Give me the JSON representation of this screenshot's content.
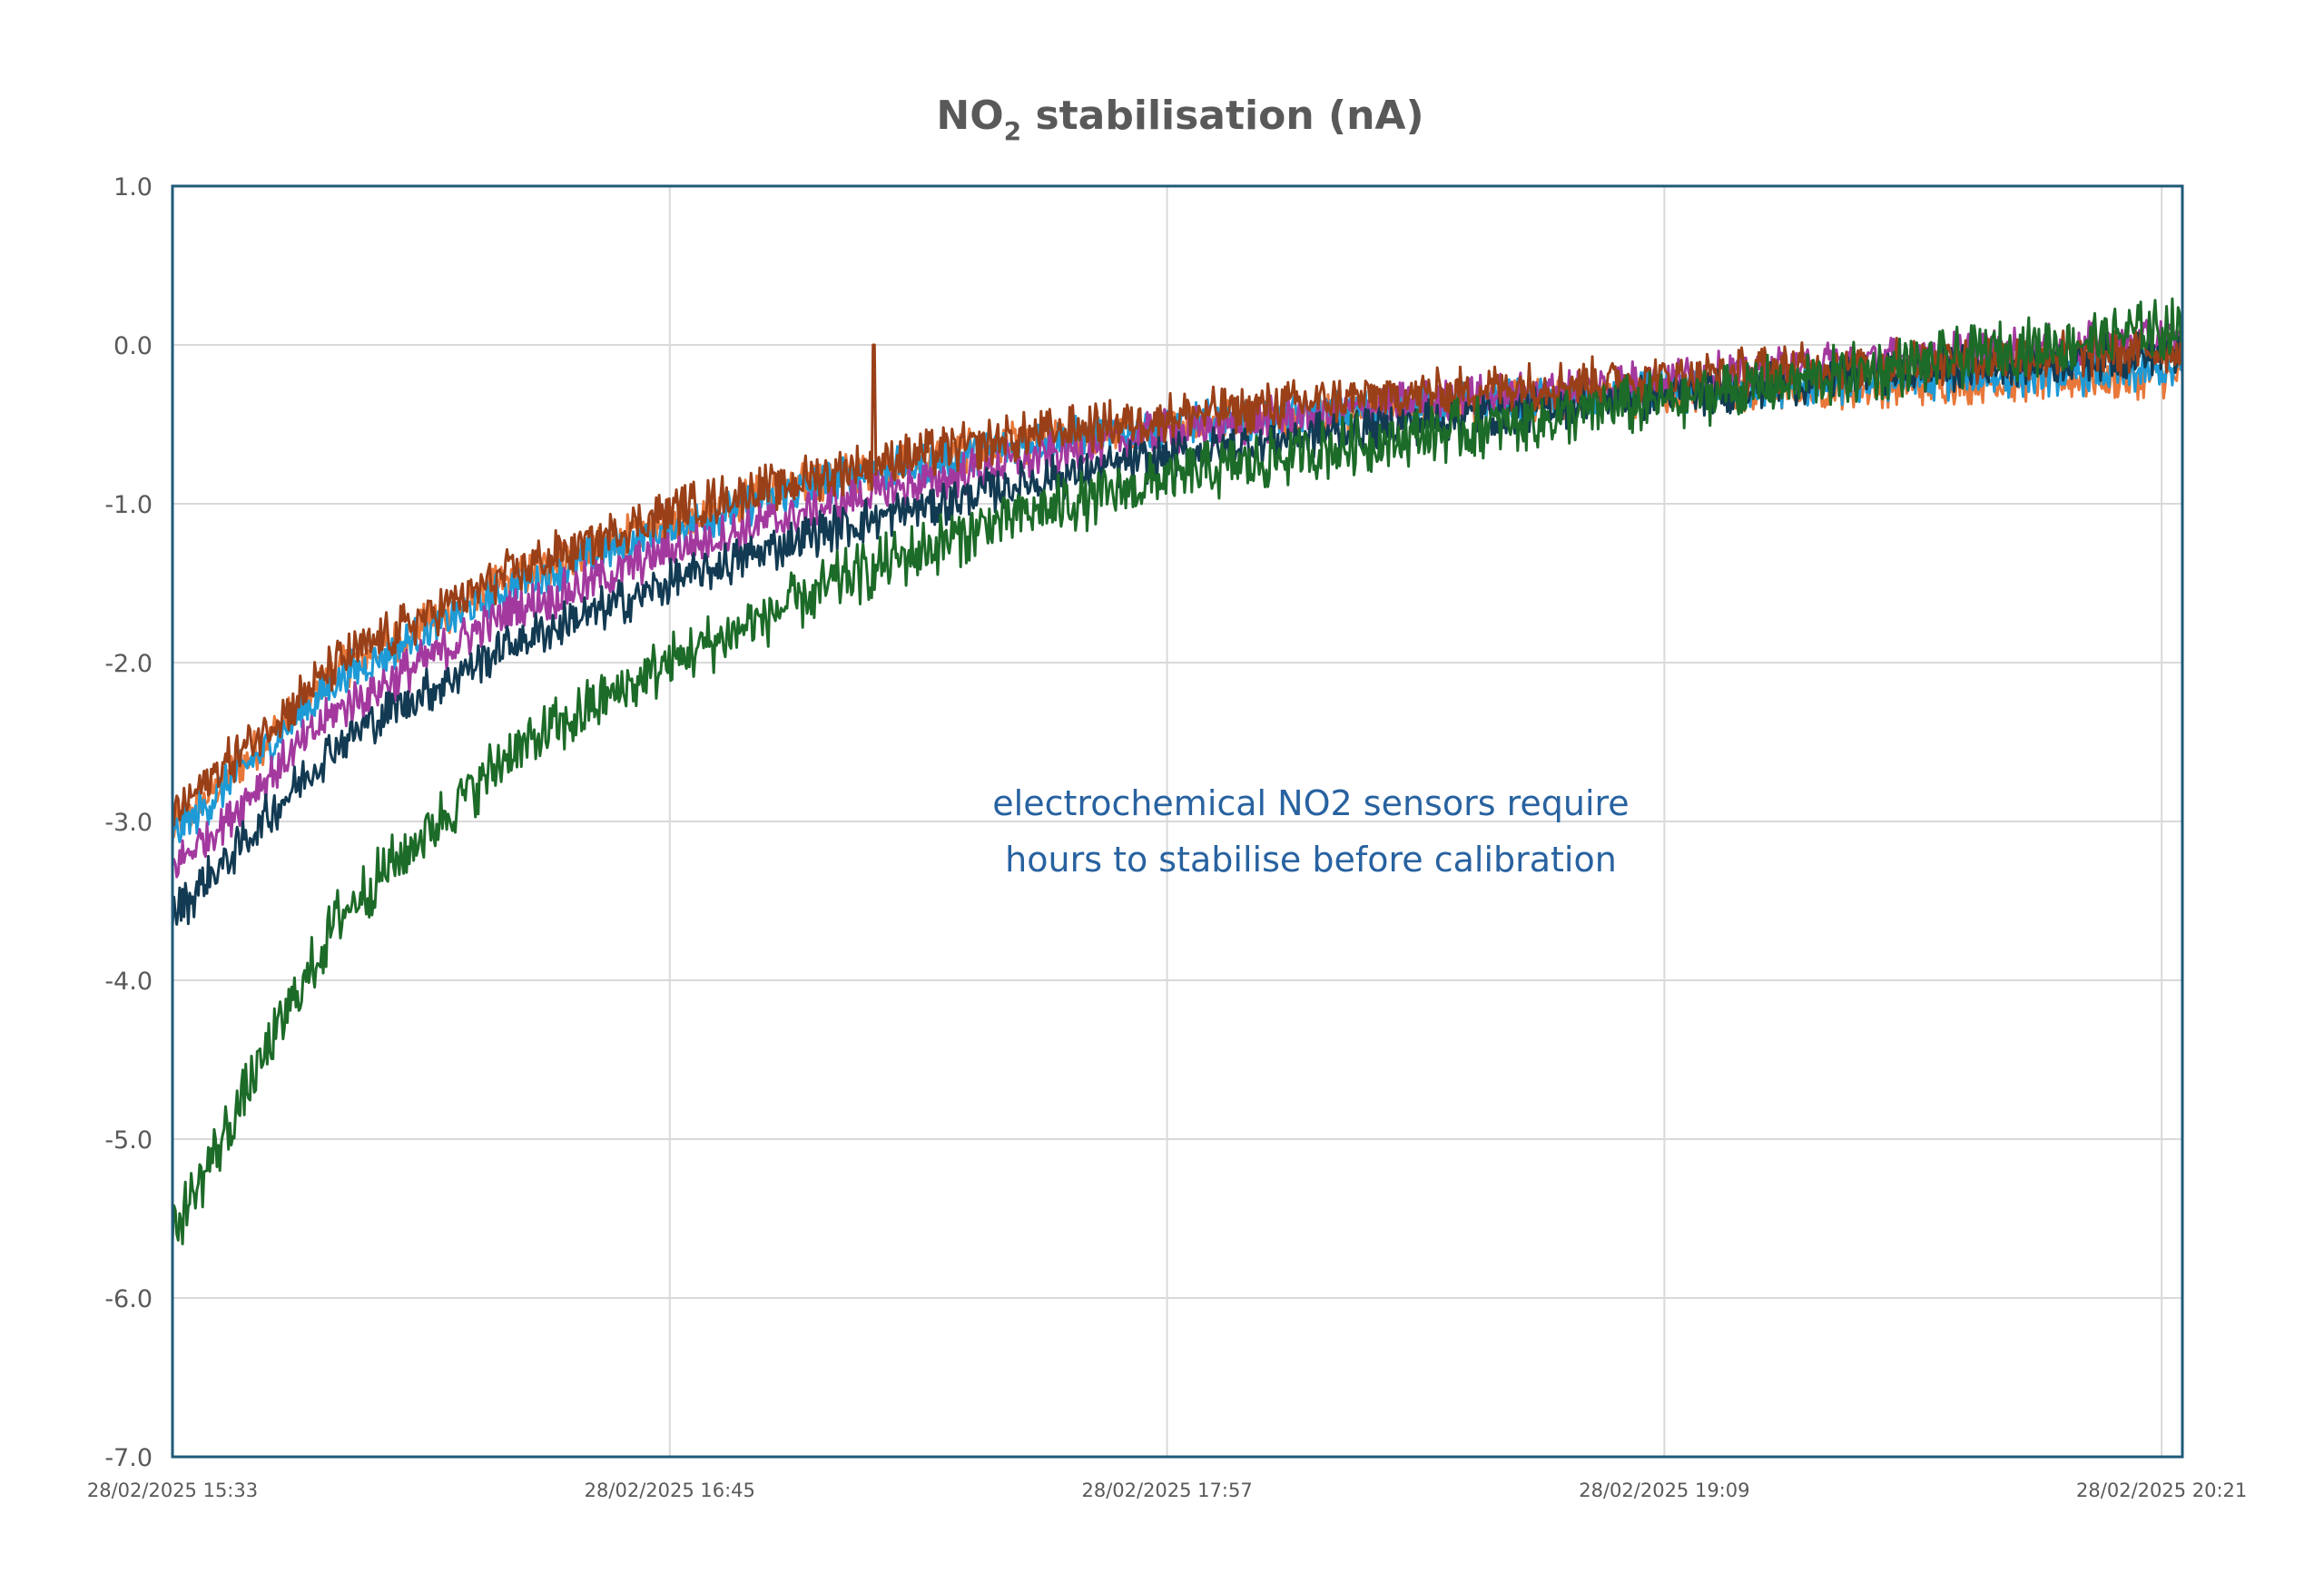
{
  "chart_data": {
    "type": "line",
    "title": "NO",
    "title_sub": "2",
    "title_rest": " stabilisation (nA)",
    "xlabel": "",
    "ylabel": "",
    "ylim": [
      -7.0,
      1.0
    ],
    "yticks": [
      "1.0",
      "0.0",
      "-1.0",
      "-2.0",
      "-3.0",
      "-4.0",
      "-5.0",
      "-6.0",
      "-7.0"
    ],
    "ytick_values": [
      1,
      0,
      -1,
      -2,
      -3,
      -4,
      -5,
      -6,
      -7
    ],
    "xlim_minutes": [
      0,
      291
    ],
    "xticks": [
      "28/02/2025 15:33",
      "28/02/2025 16:45",
      "28/02/2025 17:57",
      "28/02/2025 19:09",
      "28/02/2025 20:21"
    ],
    "xtick_minutes": [
      0,
      72,
      144,
      216,
      288
    ],
    "grid": true,
    "legend": "none",
    "annotation": [
      "electrochemical NO2 sensors require",
      "hours to stabilise before calibration"
    ],
    "x_minutes": [
      0,
      24,
      48,
      72,
      96,
      120,
      144,
      168,
      192,
      216,
      240,
      264,
      288
    ],
    "series": [
      {
        "color": "#E8783A",
        "noise": 0.14,
        "values": [
          -3.05,
          -2.05,
          -1.5,
          -1.1,
          -0.82,
          -0.63,
          -0.5,
          -0.42,
          -0.36,
          -0.31,
          -0.27,
          -0.23,
          -0.2
        ]
      },
      {
        "color": "#1E9AD6",
        "noise": 0.14,
        "values": [
          -3.1,
          -2.1,
          -1.55,
          -1.15,
          -0.85,
          -0.65,
          -0.5,
          -0.42,
          -0.35,
          -0.3,
          -0.25,
          -0.2,
          -0.17
        ]
      },
      {
        "color": "#A3399F",
        "noise": 0.15,
        "values": [
          -3.3,
          -2.3,
          -1.7,
          -1.3,
          -1.0,
          -0.75,
          -0.55,
          -0.42,
          -0.32,
          -0.22,
          -0.12,
          -0.04,
          0.03
        ]
      },
      {
        "color": "#123A52",
        "noise": 0.15,
        "values": [
          -3.6,
          -2.5,
          -1.9,
          -1.5,
          -1.15,
          -0.9,
          -0.7,
          -0.55,
          -0.42,
          -0.32,
          -0.22,
          -0.12,
          -0.05
        ]
      },
      {
        "color": "#9A4018",
        "noise": 0.16,
        "values": [
          -2.95,
          -2.0,
          -1.45,
          -1.05,
          -0.8,
          -0.6,
          -0.45,
          -0.35,
          -0.27,
          -0.2,
          -0.13,
          -0.08,
          -0.03
        ],
        "spike": {
          "minute": 101.5,
          "value": 0.0
        }
      },
      {
        "color": "#1D6B28",
        "noise": 0.2,
        "values": [
          -5.6,
          -3.6,
          -2.6,
          -2.0,
          -1.5,
          -1.1,
          -0.85,
          -0.65,
          -0.5,
          -0.35,
          -0.2,
          -0.05,
          0.1
        ]
      }
    ],
    "axis_color": "#1F5A78"
  }
}
